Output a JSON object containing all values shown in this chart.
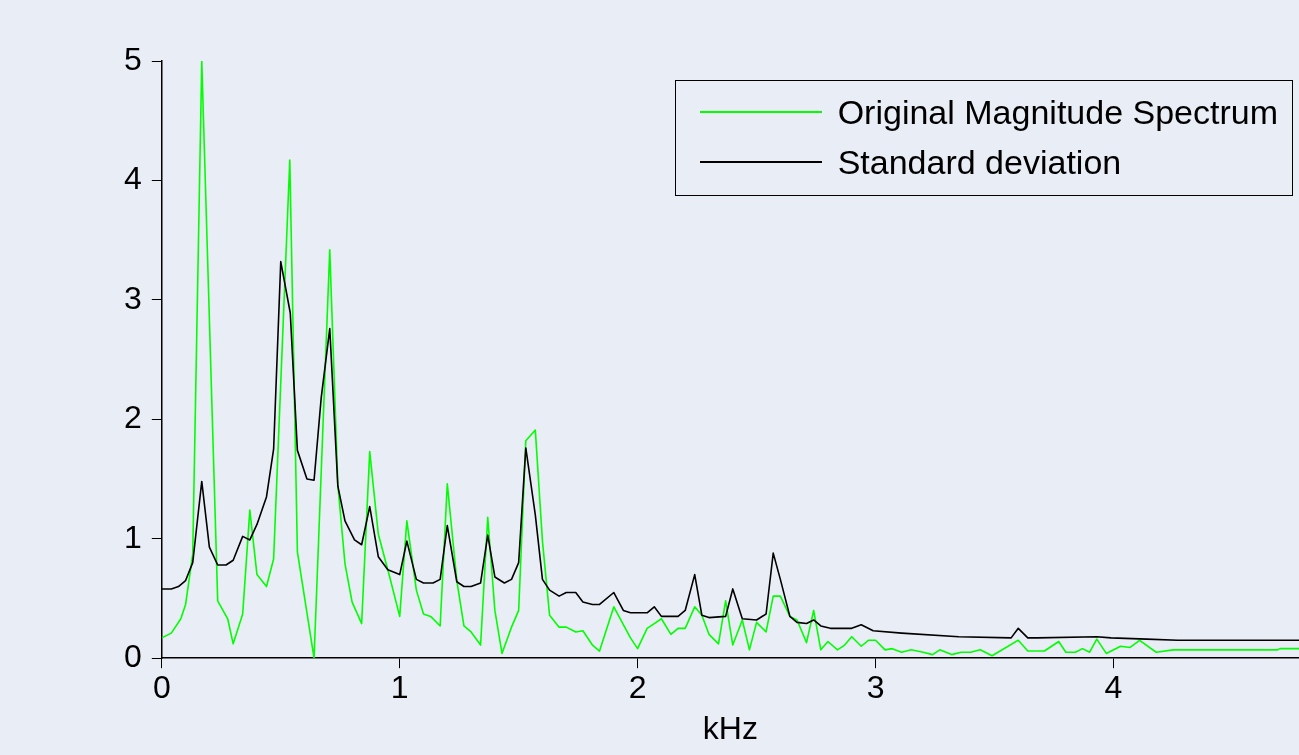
{
  "chart_data": {
    "type": "line",
    "xlabel": "kHz",
    "xlim": [
      0,
      4.78
    ],
    "xticks": [
      0,
      1,
      2,
      3,
      4
    ],
    "ylim": [
      0,
      5
    ],
    "yticks": [
      0,
      1,
      2,
      3,
      4,
      5
    ],
    "grid": false,
    "legend": "top right",
    "marker": "none",
    "line_style": "solid",
    "series": [
      {
        "name": "Original Magnitude Spectrum",
        "color": "#00ff00",
        "x": [
          0,
          0.04,
          0.08,
          0.1,
          0.13,
          0.168,
          0.235,
          0.277,
          0.3,
          0.34,
          0.37,
          0.4,
          0.44,
          0.47,
          0.538,
          0.57,
          0.64,
          0.706,
          0.74,
          0.77,
          0.8,
          0.84,
          0.874,
          0.91,
          0.958,
          1.0,
          1.03,
          1.07,
          1.1,
          1.13,
          1.17,
          1.2,
          1.24,
          1.27,
          1.3,
          1.34,
          1.37,
          1.4,
          1.43,
          1.47,
          1.5,
          1.53,
          1.57,
          1.6,
          1.63,
          1.67,
          1.7,
          1.74,
          1.77,
          1.81,
          1.84,
          1.9,
          1.97,
          2.0,
          2.04,
          2.07,
          2.1,
          2.14,
          2.17,
          2.2,
          2.24,
          2.27,
          2.3,
          2.34,
          2.37,
          2.4,
          2.44,
          2.47,
          2.5,
          2.54,
          2.57,
          2.6,
          2.64,
          2.67,
          2.71,
          2.74,
          2.77,
          2.8,
          2.84,
          2.87,
          2.9,
          2.94,
          2.97,
          3.0,
          3.04,
          3.07,
          3.11,
          3.15,
          3.2,
          3.24,
          3.27,
          3.32,
          3.36,
          3.4,
          3.44,
          3.49,
          3.6,
          3.64,
          3.71,
          3.77,
          3.8,
          3.84,
          3.87,
          3.9,
          3.93,
          3.97,
          4.03,
          4.07,
          4.11,
          4.18,
          4.25,
          4.69,
          4.7,
          4.78
        ],
        "values": [
          0.17,
          0.21,
          0.33,
          0.45,
          0.87,
          5.0,
          0.48,
          0.33,
          0.12,
          0.37,
          1.24,
          0.7,
          0.6,
          0.83,
          4.17,
          0.89,
          0.0,
          3.42,
          1.45,
          0.79,
          0.47,
          0.29,
          1.73,
          1.04,
          0.68,
          0.35,
          1.15,
          0.57,
          0.37,
          0.35,
          0.27,
          1.46,
          0.65,
          0.27,
          0.22,
          0.11,
          1.18,
          0.4,
          0.04,
          0.26,
          0.4,
          1.82,
          1.91,
          0.98,
          0.36,
          0.26,
          0.26,
          0.22,
          0.23,
          0.11,
          0.06,
          0.43,
          0.17,
          0.08,
          0.25,
          0.29,
          0.33,
          0.2,
          0.25,
          0.25,
          0.43,
          0.36,
          0.2,
          0.12,
          0.48,
          0.11,
          0.32,
          0.07,
          0.3,
          0.22,
          0.52,
          0.52,
          0.35,
          0.32,
          0.13,
          0.4,
          0.07,
          0.14,
          0.07,
          0.11,
          0.18,
          0.1,
          0.15,
          0.15,
          0.07,
          0.08,
          0.05,
          0.07,
          0.05,
          0.03,
          0.07,
          0.03,
          0.05,
          0.05,
          0.07,
          0.02,
          0.15,
          0.06,
          0.06,
          0.14,
          0.05,
          0.05,
          0.08,
          0.05,
          0.16,
          0.04,
          0.1,
          0.09,
          0.15,
          0.05,
          0.07,
          0.07,
          0.08,
          0.08
        ]
      },
      {
        "name": "Standard deviation",
        "color": "#000000",
        "x": [
          0,
          0.04,
          0.07,
          0.1,
          0.13,
          0.168,
          0.2,
          0.235,
          0.27,
          0.3,
          0.34,
          0.37,
          0.4,
          0.44,
          0.47,
          0.5,
          0.54,
          0.57,
          0.61,
          0.64,
          0.67,
          0.706,
          0.74,
          0.77,
          0.81,
          0.84,
          0.874,
          0.91,
          0.95,
          1.0,
          1.03,
          1.07,
          1.1,
          1.14,
          1.17,
          1.2,
          1.24,
          1.27,
          1.3,
          1.34,
          1.37,
          1.4,
          1.44,
          1.47,
          1.5,
          1.53,
          1.57,
          1.6,
          1.63,
          1.67,
          1.7,
          1.74,
          1.77,
          1.81,
          1.84,
          1.9,
          1.94,
          1.97,
          2.04,
          2.07,
          2.1,
          2.17,
          2.2,
          2.24,
          2.27,
          2.3,
          2.37,
          2.4,
          2.44,
          2.5,
          2.54,
          2.57,
          2.6,
          2.64,
          2.67,
          2.71,
          2.74,
          2.77,
          2.81,
          2.9,
          2.94,
          2.99,
          3.11,
          3.35,
          3.57,
          3.6,
          3.64,
          3.68,
          3.93,
          3.99,
          4.14,
          4.27,
          4.78
        ],
        "values": [
          0.58,
          0.58,
          0.6,
          0.65,
          0.8,
          1.48,
          0.93,
          0.78,
          0.78,
          0.82,
          1.02,
          0.99,
          1.12,
          1.35,
          1.75,
          3.32,
          2.89,
          1.74,
          1.5,
          1.49,
          2.18,
          2.76,
          1.44,
          1.15,
          0.99,
          0.95,
          1.27,
          0.85,
          0.74,
          0.7,
          0.98,
          0.66,
          0.63,
          0.63,
          0.66,
          1.11,
          0.64,
          0.6,
          0.6,
          0.63,
          1.03,
          0.68,
          0.63,
          0.66,
          0.8,
          1.76,
          1.2,
          0.66,
          0.57,
          0.52,
          0.55,
          0.55,
          0.47,
          0.45,
          0.45,
          0.55,
          0.4,
          0.38,
          0.38,
          0.43,
          0.35,
          0.35,
          0.4,
          0.7,
          0.36,
          0.34,
          0.35,
          0.58,
          0.33,
          0.32,
          0.37,
          0.88,
          0.66,
          0.35,
          0.3,
          0.29,
          0.32,
          0.27,
          0.25,
          0.25,
          0.28,
          0.23,
          0.21,
          0.18,
          0.17,
          0.25,
          0.17,
          0.17,
          0.18,
          0.17,
          0.16,
          0.15,
          0.15
        ]
      }
    ]
  }
}
